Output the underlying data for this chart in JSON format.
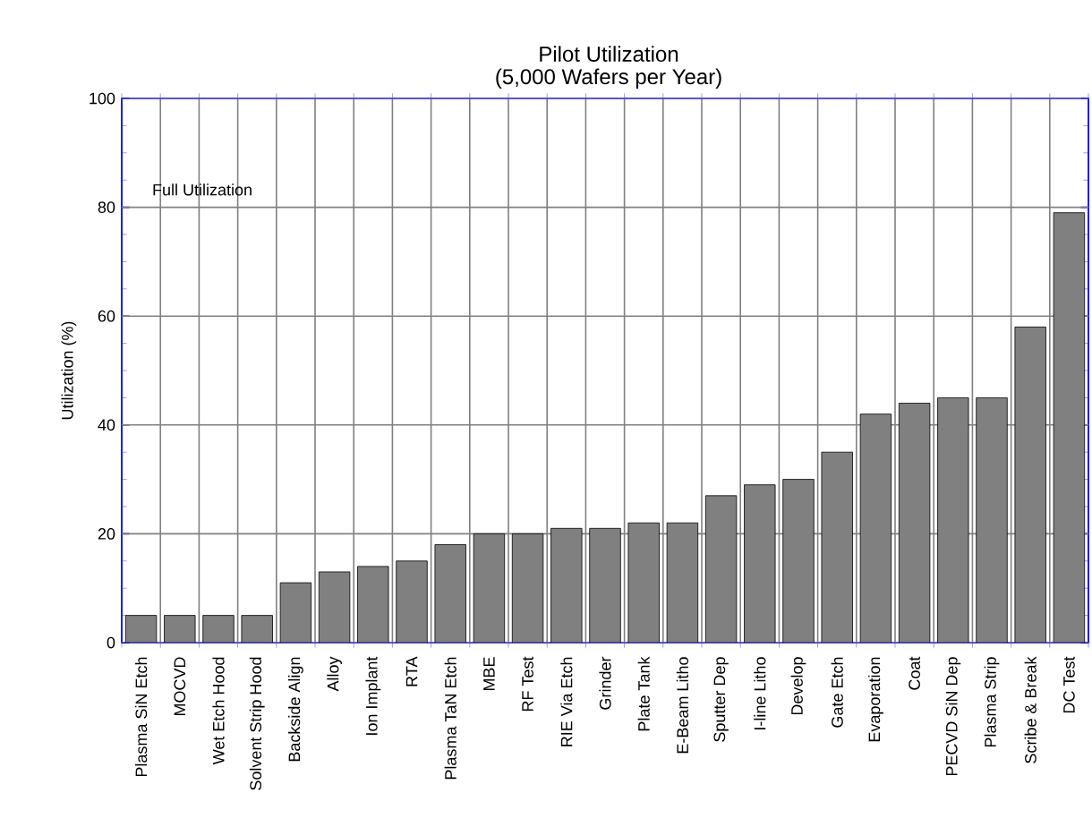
{
  "chart_data": {
    "type": "bar",
    "title": "Pilot Utilization",
    "subtitle": "(5,000 Wafers per Year)",
    "ylabel": "Utilization (%)",
    "categories": [
      "Plasma SiN Etch",
      "MOCVD",
      "Wet Etch Hood",
      "Solvent Strip Hood",
      "Backside Align",
      "Alloy",
      "Ion Implant",
      "RTA",
      "Plasma TaN Etch",
      "MBE",
      "RF Test",
      "RIE Via Etch",
      "Grinder",
      "Plate Tank",
      "E-Beam Litho",
      "Sputter Dep",
      "I-line Litho",
      "Develop",
      "Gate Etch",
      "Evaporation",
      "Coat",
      "PECVD SiN Dep",
      "Plasma Strip",
      "Scribe & Break",
      "DC Test"
    ],
    "values": [
      5,
      5,
      5,
      5,
      11,
      13,
      14,
      15,
      18,
      20,
      20,
      21,
      21,
      22,
      22,
      27,
      29,
      30,
      35,
      42,
      44,
      45,
      45,
      58,
      79
    ],
    "color": "#808080",
    "ylim": [
      0,
      100
    ],
    "yticks": [
      0,
      20,
      40,
      60,
      80,
      100
    ],
    "grid": true,
    "annotations": [
      "Full Utilization"
    ]
  }
}
